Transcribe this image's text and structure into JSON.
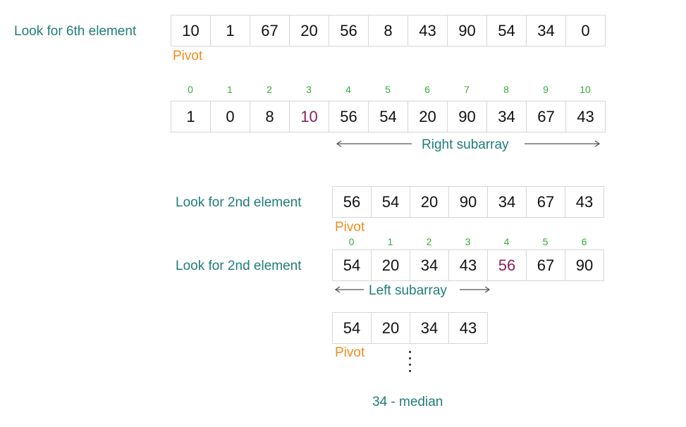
{
  "step1": {
    "label": "Look for 6th element",
    "array": [
      "10",
      "1",
      "67",
      "20",
      "56",
      "8",
      "43",
      "90",
      "54",
      "34",
      "0"
    ],
    "pivot_label": "Pivot"
  },
  "step2": {
    "indices": [
      "0",
      "1",
      "2",
      "3",
      "4",
      "5",
      "6",
      "7",
      "8",
      "9",
      "10"
    ],
    "array": [
      "1",
      "0",
      "8",
      "10",
      "56",
      "54",
      "20",
      "90",
      "34",
      "67",
      "43"
    ],
    "highlight_index": 3,
    "subarray_label": "Right subarray"
  },
  "step3": {
    "label": "Look for 2nd element",
    "array": [
      "56",
      "54",
      "20",
      "90",
      "34",
      "67",
      "43"
    ],
    "pivot_label": "Pivot"
  },
  "step4": {
    "label": "Look for 2nd element",
    "indices": [
      "0",
      "1",
      "2",
      "3",
      "4",
      "5",
      "6"
    ],
    "array": [
      "54",
      "20",
      "34",
      "43",
      "56",
      "67",
      "90"
    ],
    "highlight_index": 4,
    "subarray_label": "Left subarray"
  },
  "step5": {
    "array": [
      "54",
      "20",
      "34",
      "43"
    ],
    "pivot_label": "Pivot",
    "result_label": "34 - median"
  },
  "colors": {
    "teal": "#1f7d78",
    "orange": "#f08c1c",
    "green": "#35ad35",
    "highlight": "#8a1f5c",
    "cell_border": "#d6d6d6"
  }
}
